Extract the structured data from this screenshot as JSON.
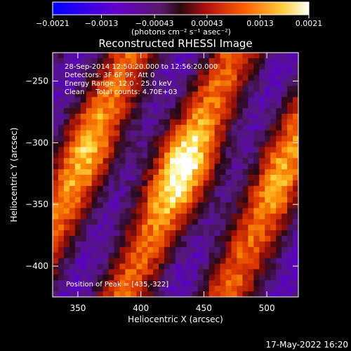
{
  "chart_data": {
    "type": "heatmap",
    "title": "Reconstructed RHESSI Image",
    "xlabel": "Heliocentric X (arcsec)",
    "ylabel": "Heliocentric Y (arcsec)",
    "xlim": [
      330,
      525
    ],
    "ylim": [
      -425,
      -227
    ],
    "x_ticks": [
      350,
      400,
      450,
      500
    ],
    "y_ticks": [
      -250,
      -300,
      -350,
      -400
    ],
    "x_tick_labels": [
      "350",
      "400",
      "450",
      "500"
    ],
    "y_tick_labels": [
      "−250",
      "−300",
      "−350",
      "−400"
    ],
    "colorbar": {
      "range": [
        -0.0021,
        0.0021
      ],
      "tick_labels": [
        "−0.0021",
        "−0.0013",
        "−0.00043",
        "0.00043",
        "0.0013",
        "0.0021"
      ],
      "tick_values": [
        -0.0021,
        -0.0013,
        -0.00043,
        0.00043,
        0.0013,
        0.0021
      ],
      "unit_label": "(photons cm⁻² s⁻¹ asec⁻²)"
    },
    "annotations": [
      "28-Sep-2014 12:50:20.000 to 12:56:20.000",
      "Detectors: 3F 6F 9F, Att 0",
      "Energy Range: 12.0 - 25.0 keV",
      "Clean     Total counts: 4.70E+03"
    ],
    "peak_label": "Position of Peak = [435,-322]",
    "peak": [
      435,
      -322
    ],
    "colors": {
      "background": "#000000",
      "text": "#ffffff"
    }
  },
  "footer_timestamp": "17-May-2022 16:20"
}
